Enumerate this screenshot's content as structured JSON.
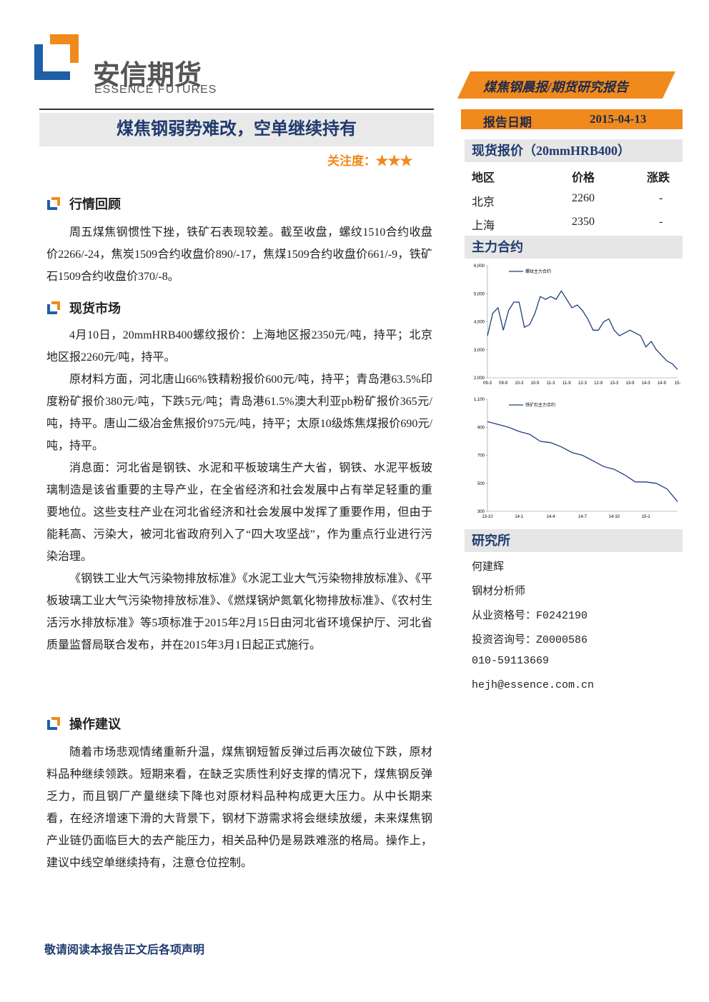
{
  "header": {
    "logo_cn": "安信期货",
    "logo_en": "ESSENCE FUTURES",
    "banner": "煤焦钢晨报/期货研究报告",
    "report_date_label": "报告日期",
    "report_date": "2015-04-13",
    "title": "煤焦钢弱势难改，空单继续持有",
    "attention": "关注度：★★★"
  },
  "sections": [
    {
      "heading": "行情回顾",
      "paragraphs": [
        "周五煤焦钢惯性下挫，铁矿石表现较差。截至收盘，螺纹1510合约收盘价2266/-24，焦炭1509合约收盘价890/-17，焦煤1509合约收盘价661/-9，铁矿石1509合约收盘价370/-8。"
      ]
    },
    {
      "heading": "现货市场",
      "paragraphs": [
        "4月10日，20mmHRB400螺纹报价：上海地区报2350元/吨，持平；北京地区报2260元/吨，持平。",
        "原材料方面，河北唐山66%铁精粉报价600元/吨，持平；青岛港63.5%印度粉矿报价380元/吨，下跌5元/吨；青岛港61.5%澳大利亚pb粉矿报价365元/吨，持平。唐山二级冶金焦报价975元/吨，持平；太原10级炼焦煤报价690元/吨，持平。",
        "消息面：河北省是钢铁、水泥和平板玻璃生产大省，钢铁、水泥平板玻璃制造是该省重要的主导产业，在全省经济和社会发展中占有举足轻重的重要地位。这些支柱产业在河北省经济和社会发展中发挥了重要作用，但由于能耗高、污染大，被河北省政府列入了“四大攻坚战”，作为重点行业进行污染治理。",
        "《钢铁工业大气污染物排放标准》《水泥工业大气污染物排放标准》、《平板玻璃工业大气污染物排放标准》、《燃煤锅炉氮氧化物排放标准》、《农村生活污水排放标准》等5项标准于2015年2月15日由河北省环境保护厅、河北省质量监督局联合发布，并在2015年3月1日起正式施行。"
      ]
    },
    {
      "heading": "操作建议",
      "paragraphs": [
        "随着市场悲观情绪重新升温，煤焦钢短暂反弹过后再次破位下跌，原材料品种继续领跌。短期来看，在缺乏实质性利好支撑的情况下，煤焦钢反弹乏力，而且钢厂产量继续下降也对原材料品种构成更大压力。从中长期来看，在经济增速下滑的大背景下，钢材下游需求将会继续放缓，未来煤焦钢产业链仍面临巨大的去产能压力，相关品种仍是易跌难涨的格局。操作上，建议中线空单继续持有，注意仓位控制。"
      ]
    }
  ],
  "sidebar": {
    "spot_heading": "现货报价（20mmHRB400）",
    "spot_table": {
      "columns": [
        "地区",
        "价格",
        "涨跌"
      ],
      "rows": [
        [
          "北京",
          "2260",
          "-"
        ],
        [
          "上海",
          "2350",
          "-"
        ]
      ]
    },
    "contract_heading": "主力合约",
    "institute_heading": "研究所",
    "contacts": [
      "何建辉",
      "钢材分析师",
      "从业资格号：F0242190",
      "投资咨询号：Z0000586",
      "010-59113669",
      "hejh@essence.com.cn"
    ]
  },
  "footer": "敬请阅读本报告正文后各项声明",
  "chart_data": [
    {
      "type": "line",
      "categories": [
        "09-3",
        null,
        null,
        "09-9",
        null,
        null,
        "10-3",
        null,
        null,
        "10-9",
        null,
        null,
        "11-3",
        null,
        null,
        "11-9",
        null,
        null,
        "12-3",
        null,
        null,
        "12-9",
        null,
        null,
        "13-3",
        null,
        null,
        "13-9",
        null,
        null,
        "14-3",
        null,
        null,
        "14-9",
        null,
        null,
        "15-"
      ],
      "series": [
        {
          "name": "螺纹主力合约",
          "color": "#1f3d7a",
          "values": [
            3500,
            4300,
            4500,
            3700,
            4400,
            4700,
            4700,
            3800,
            3900,
            4300,
            4900,
            4800,
            4900,
            4800,
            5100,
            4800,
            4500,
            4600,
            4400,
            4100,
            3700,
            3700,
            4000,
            4100,
            3700,
            3500,
            3600,
            3700,
            3600,
            3500,
            3100,
            3300,
            3000,
            2800,
            2600,
            2500,
            2300
          ]
        }
      ],
      "ylim": [
        2000,
        6000
      ],
      "yticks": [
        {
          "value": 2000,
          "label": "2,000"
        },
        {
          "value": 3000,
          "label": "3,000"
        },
        {
          "value": 4000,
          "label": "4,000"
        },
        {
          "value": 5000,
          "label": "5,000"
        },
        {
          "value": 6000,
          "label": "6,000"
        }
      ]
    },
    {
      "type": "line",
      "categories": [
        "13-10",
        null,
        null,
        "14-1",
        null,
        null,
        "14-4",
        null,
        null,
        "14-7",
        null,
        null,
        "14-10",
        null,
        null,
        "15-1",
        null,
        null,
        null
      ],
      "series": [
        {
          "name": "铁矿石主力合约",
          "color": "#1f3d7a",
          "values": [
            940,
            920,
            900,
            870,
            850,
            800,
            790,
            760,
            720,
            700,
            660,
            620,
            600,
            560,
            510,
            510,
            500,
            460,
            370
          ]
        }
      ],
      "ylim": [
        300,
        1100
      ],
      "yticks": [
        300,
        500,
        700,
        900,
        {
          "value": 1100,
          "label": "1,100"
        }
      ]
    }
  ]
}
